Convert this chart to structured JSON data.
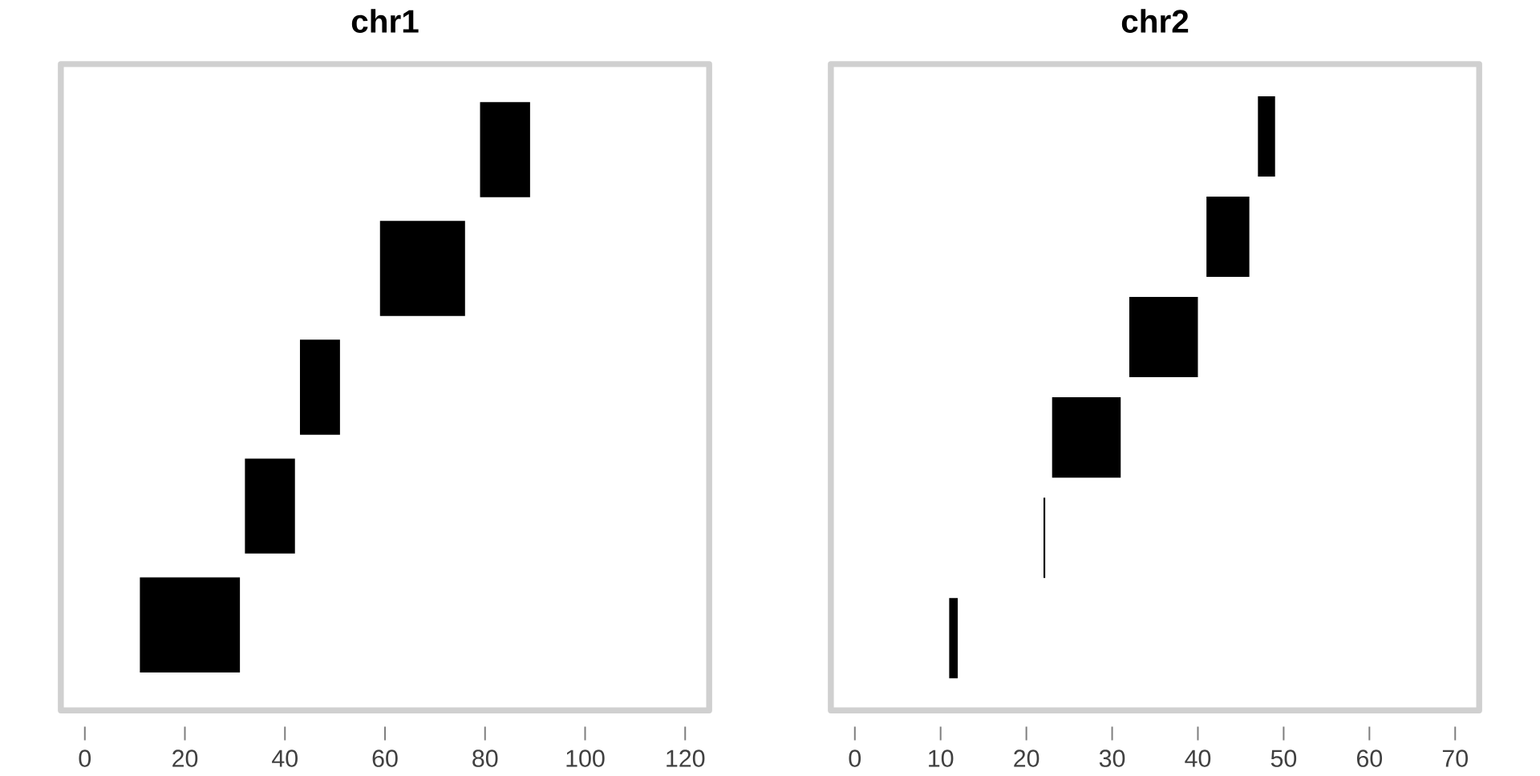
{
  "chart_data": [
    {
      "type": "bar",
      "orientation": "horizontal",
      "title": "chr1",
      "categories": [
        null,
        null,
        null,
        null,
        null
      ],
      "base": [
        79,
        59,
        43,
        32,
        11
      ],
      "values": [
        10,
        17,
        8,
        10,
        20
      ],
      "color": "#000000",
      "xlim": [
        -4.8,
        124.8
      ],
      "xticks": [
        0,
        20,
        40,
        60,
        80,
        100,
        120
      ],
      "tick_labels": "x"
    },
    {
      "type": "bar",
      "orientation": "horizontal",
      "title": "chr2",
      "categories": [
        null,
        null,
        null,
        null,
        null,
        null
      ],
      "base": [
        47,
        41,
        32,
        23,
        22,
        11
      ],
      "values": [
        2,
        5,
        8,
        8,
        0.2,
        1
      ],
      "color": "#000000",
      "xlim": [
        -2.8,
        72.8
      ],
      "xticks": [
        0,
        10,
        20,
        30,
        40,
        50,
        60,
        70
      ],
      "tick_labels": "x"
    }
  ]
}
